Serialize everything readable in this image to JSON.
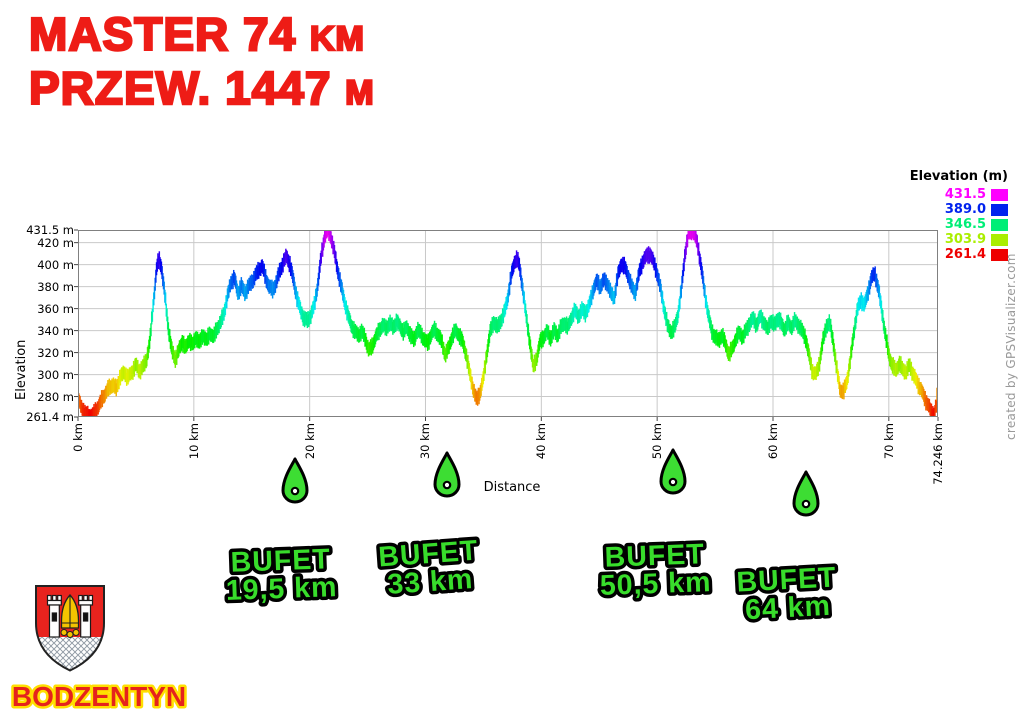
{
  "title": {
    "line1_main": "MASTER 74",
    "line1_unit": "KM",
    "line2_main": "PRZEW. 1447",
    "line2_unit": "M",
    "color": "#ee1c16"
  },
  "chart_data": {
    "type": "area",
    "title": "",
    "xlabel": "Distance",
    "ylabel": "Elevation",
    "x_unit": "km",
    "y_unit": "m",
    "xlim": [
      0,
      74.246
    ],
    "ylim": [
      261.4,
      431.5
    ],
    "grid": true,
    "x_ticks": [
      {
        "km": 0,
        "label": "0 km"
      },
      {
        "km": 10,
        "label": "10 km"
      },
      {
        "km": 20,
        "label": "20 km"
      },
      {
        "km": 30,
        "label": "30 km"
      },
      {
        "km": 40,
        "label": "40 km"
      },
      {
        "km": 50,
        "label": "50 km"
      },
      {
        "km": 60,
        "label": "60 km"
      },
      {
        "km": 70,
        "label": "70 km"
      },
      {
        "km": 74.246,
        "label": "74.246 km"
      }
    ],
    "y_ticks": [
      {
        "m": 431.5,
        "label": "431.5 m"
      },
      {
        "m": 420,
        "label": "420 m"
      },
      {
        "m": 400,
        "label": "400 m"
      },
      {
        "m": 380,
        "label": "380 m"
      },
      {
        "m": 360,
        "label": "360 m"
      },
      {
        "m": 340,
        "label": "340 m"
      },
      {
        "m": 320,
        "label": "320 m"
      },
      {
        "m": 300,
        "label": "300 m"
      },
      {
        "m": 280,
        "label": "280 m"
      },
      {
        "m": 261.4,
        "label": "261.4 m"
      }
    ],
    "color_scale": [
      {
        "m": 261.4,
        "color": "#ee0000"
      },
      {
        "m": 303.9,
        "color": "#aaee00"
      },
      {
        "m": 346.5,
        "color": "#00ee77"
      },
      {
        "m": 389.0,
        "color": "#0022ee"
      },
      {
        "m": 431.5,
        "color": "#ff00ff"
      }
    ],
    "profile_km_m": [
      [
        0,
        278
      ],
      [
        0.3,
        270
      ],
      [
        0.7,
        264
      ],
      [
        1.1,
        262
      ],
      [
        1.4,
        265
      ],
      [
        1.8,
        272
      ],
      [
        2.2,
        280
      ],
      [
        2.6,
        287
      ],
      [
        3,
        291
      ],
      [
        3.3,
        287
      ],
      [
        3.6,
        297
      ],
      [
        4,
        302
      ],
      [
        4.3,
        297
      ],
      [
        4.7,
        303
      ],
      [
        5,
        309
      ],
      [
        5.3,
        303
      ],
      [
        5.6,
        307
      ],
      [
        5.9,
        313
      ],
      [
        6.2,
        330
      ],
      [
        6.5,
        365
      ],
      [
        6.8,
        398
      ],
      [
        7,
        405
      ],
      [
        7.2,
        398
      ],
      [
        7.5,
        372
      ],
      [
        7.8,
        342
      ],
      [
        8.1,
        322
      ],
      [
        8.4,
        314
      ],
      [
        8.7,
        322
      ],
      [
        9,
        330
      ],
      [
        9.3,
        324
      ],
      [
        9.6,
        332
      ],
      [
        9.9,
        327
      ],
      [
        10.2,
        334
      ],
      [
        10.5,
        329
      ],
      [
        10.8,
        336
      ],
      [
        11.1,
        331
      ],
      [
        11.4,
        338
      ],
      [
        11.7,
        334
      ],
      [
        12,
        342
      ],
      [
        12.3,
        347
      ],
      [
        12.6,
        356
      ],
      [
        12.9,
        371
      ],
      [
        13.2,
        384
      ],
      [
        13.5,
        388
      ],
      [
        13.8,
        374
      ],
      [
        14.1,
        381
      ],
      [
        14.4,
        374
      ],
      [
        14.7,
        380
      ],
      [
        15,
        384
      ],
      [
        15.3,
        390
      ],
      [
        15.6,
        395
      ],
      [
        15.9,
        399
      ],
      [
        16.2,
        388
      ],
      [
        16.5,
        380
      ],
      [
        16.8,
        377
      ],
      [
        17.1,
        383
      ],
      [
        17.4,
        394
      ],
      [
        17.7,
        401
      ],
      [
        18,
        408
      ],
      [
        18.3,
        400
      ],
      [
        18.6,
        386
      ],
      [
        18.9,
        370
      ],
      [
        19.2,
        359
      ],
      [
        19.5,
        351
      ],
      [
        19.8,
        349
      ],
      [
        20.1,
        354
      ],
      [
        20.4,
        363
      ],
      [
        20.7,
        382
      ],
      [
        21,
        408
      ],
      [
        21.3,
        426
      ],
      [
        21.55,
        431
      ],
      [
        21.8,
        427
      ],
      [
        22.1,
        413
      ],
      [
        22.4,
        396
      ],
      [
        22.7,
        381
      ],
      [
        23,
        367
      ],
      [
        23.3,
        354
      ],
      [
        23.6,
        345
      ],
      [
        23.9,
        339
      ],
      [
        24.2,
        336
      ],
      [
        24.5,
        339
      ],
      [
        24.8,
        333
      ],
      [
        25.1,
        322
      ],
      [
        25.4,
        326
      ],
      [
        25.7,
        334
      ],
      [
        26,
        340
      ],
      [
        26.3,
        345
      ],
      [
        26.6,
        342
      ],
      [
        26.9,
        347
      ],
      [
        27.2,
        343
      ],
      [
        27.5,
        348
      ],
      [
        27.8,
        344
      ],
      [
        28.1,
        339
      ],
      [
        28.4,
        343
      ],
      [
        28.7,
        336
      ],
      [
        29,
        331
      ],
      [
        29.3,
        341
      ],
      [
        29.6,
        337
      ],
      [
        29.9,
        332
      ],
      [
        30.2,
        328
      ],
      [
        30.5,
        337
      ],
      [
        30.8,
        341
      ],
      [
        31.1,
        336
      ],
      [
        31.4,
        330
      ],
      [
        31.7,
        318
      ],
      [
        32,
        324
      ],
      [
        32.3,
        335
      ],
      [
        32.6,
        340
      ],
      [
        32.9,
        336
      ],
      [
        33.2,
        330
      ],
      [
        33.5,
        319
      ],
      [
        33.8,
        302
      ],
      [
        34.1,
        288
      ],
      [
        34.4,
        277
      ],
      [
        34.7,
        283
      ],
      [
        35,
        297
      ],
      [
        35.3,
        320
      ],
      [
        35.6,
        340
      ],
      [
        35.9,
        348
      ],
      [
        36.2,
        343
      ],
      [
        36.5,
        349
      ],
      [
        36.8,
        356
      ],
      [
        37.1,
        370
      ],
      [
        37.4,
        390
      ],
      [
        37.7,
        403
      ],
      [
        37.9,
        406
      ],
      [
        38.1,
        399
      ],
      [
        38.4,
        378
      ],
      [
        38.7,
        352
      ],
      [
        39,
        330
      ],
      [
        39.3,
        307
      ],
      [
        39.6,
        315
      ],
      [
        39.9,
        330
      ],
      [
        40.2,
        334
      ],
      [
        40.5,
        339
      ],
      [
        40.8,
        333
      ],
      [
        41.1,
        340
      ],
      [
        41.4,
        336
      ],
      [
        41.7,
        343
      ],
      [
        42,
        347
      ],
      [
        42.3,
        343
      ],
      [
        42.6,
        352
      ],
      [
        42.9,
        358
      ],
      [
        43.2,
        353
      ],
      [
        43.5,
        359
      ],
      [
        43.8,
        356
      ],
      [
        44.1,
        362
      ],
      [
        44.5,
        378
      ],
      [
        44.8,
        385
      ],
      [
        45.1,
        380
      ],
      [
        45.4,
        386
      ],
      [
        45.7,
        383
      ],
      [
        46,
        374
      ],
      [
        46.3,
        370
      ],
      [
        46.6,
        390
      ],
      [
        46.9,
        401
      ],
      [
        47.2,
        398
      ],
      [
        47.5,
        390
      ],
      [
        47.8,
        380
      ],
      [
        48.1,
        374
      ],
      [
        48.5,
        395
      ],
      [
        48.8,
        404
      ],
      [
        49.1,
        408
      ],
      [
        49.4,
        410
      ],
      [
        49.7,
        402
      ],
      [
        50,
        392
      ],
      [
        50.3,
        378
      ],
      [
        50.6,
        360
      ],
      [
        50.9,
        344
      ],
      [
        51.2,
        339
      ],
      [
        51.5,
        342
      ],
      [
        51.8,
        355
      ],
      [
        52.1,
        378
      ],
      [
        52.4,
        410
      ],
      [
        52.7,
        428
      ],
      [
        53,
        431
      ],
      [
        53.2,
        429
      ],
      [
        53.5,
        418
      ],
      [
        53.8,
        398
      ],
      [
        54.1,
        375
      ],
      [
        54.4,
        355
      ],
      [
        54.7,
        340
      ],
      [
        55,
        334
      ],
      [
        55.3,
        331
      ],
      [
        55.6,
        336
      ],
      [
        55.9,
        328
      ],
      [
        56.2,
        318
      ],
      [
        56.5,
        324
      ],
      [
        56.8,
        333
      ],
      [
        57.1,
        338
      ],
      [
        57.4,
        334
      ],
      [
        57.7,
        341
      ],
      [
        58,
        347
      ],
      [
        58.3,
        351
      ],
      [
        58.6,
        345
      ],
      [
        58.9,
        353
      ],
      [
        59.2,
        348
      ],
      [
        59.5,
        341
      ],
      [
        59.8,
        349
      ],
      [
        60.1,
        345
      ],
      [
        60.4,
        351
      ],
      [
        60.7,
        347
      ],
      [
        61,
        341
      ],
      [
        61.3,
        347
      ],
      [
        61.6,
        343
      ],
      [
        61.9,
        349
      ],
      [
        62.2,
        345
      ],
      [
        62.5,
        340
      ],
      [
        62.8,
        334
      ],
      [
        63.1,
        318
      ],
      [
        63.4,
        303
      ],
      [
        63.7,
        300
      ],
      [
        64,
        310
      ],
      [
        64.3,
        330
      ],
      [
        64.6,
        344
      ],
      [
        64.9,
        347
      ],
      [
        65.2,
        330
      ],
      [
        65.5,
        305
      ],
      [
        65.8,
        286
      ],
      [
        66.1,
        284
      ],
      [
        66.4,
        295
      ],
      [
        66.7,
        315
      ],
      [
        67,
        340
      ],
      [
        67.3,
        360
      ],
      [
        67.6,
        368
      ],
      [
        67.9,
        363
      ],
      [
        68.2,
        375
      ],
      [
        68.5,
        388
      ],
      [
        68.8,
        392
      ],
      [
        69.1,
        378
      ],
      [
        69.4,
        358
      ],
      [
        69.7,
        336
      ],
      [
        70,
        318
      ],
      [
        70.3,
        308
      ],
      [
        70.6,
        304
      ],
      [
        70.9,
        310
      ],
      [
        71.2,
        305
      ],
      [
        71.5,
        302
      ],
      [
        71.8,
        309
      ],
      [
        72.1,
        300
      ],
      [
        72.4,
        294
      ],
      [
        72.7,
        288
      ],
      [
        73,
        281
      ],
      [
        73.3,
        274
      ],
      [
        73.6,
        268
      ],
      [
        73.9,
        263
      ],
      [
        74.1,
        272
      ],
      [
        74.246,
        291
      ]
    ]
  },
  "legend": {
    "title": "Elevation (m)",
    "entries": [
      {
        "label": "431.5",
        "color": "#ff00ff"
      },
      {
        "label": "389.0",
        "color": "#0022ee"
      },
      {
        "label": "346.5",
        "color": "#00ee77"
      },
      {
        "label": "303.9",
        "color": "#aaee00"
      },
      {
        "label": "261.4",
        "color": "#ee0000"
      }
    ]
  },
  "watermark": "created by GPSVisualizer.com",
  "checkpoints": {
    "label": "BUFET",
    "marker_color": "#3ddd33",
    "text_color": "#38dc2b",
    "items": [
      {
        "distance": "19,5 km",
        "km": 19.5
      },
      {
        "distance": "33 km",
        "km": 33
      },
      {
        "distance": "50,5 km",
        "km": 50.5
      },
      {
        "distance": "64 km",
        "km": 64
      }
    ]
  },
  "logo": {
    "town": "BODZENTYN",
    "text_color": "#e5231c",
    "outline_color": "#ffdf00",
    "shield_red": "#e8231e",
    "mitre_gold": "#f4c400"
  }
}
